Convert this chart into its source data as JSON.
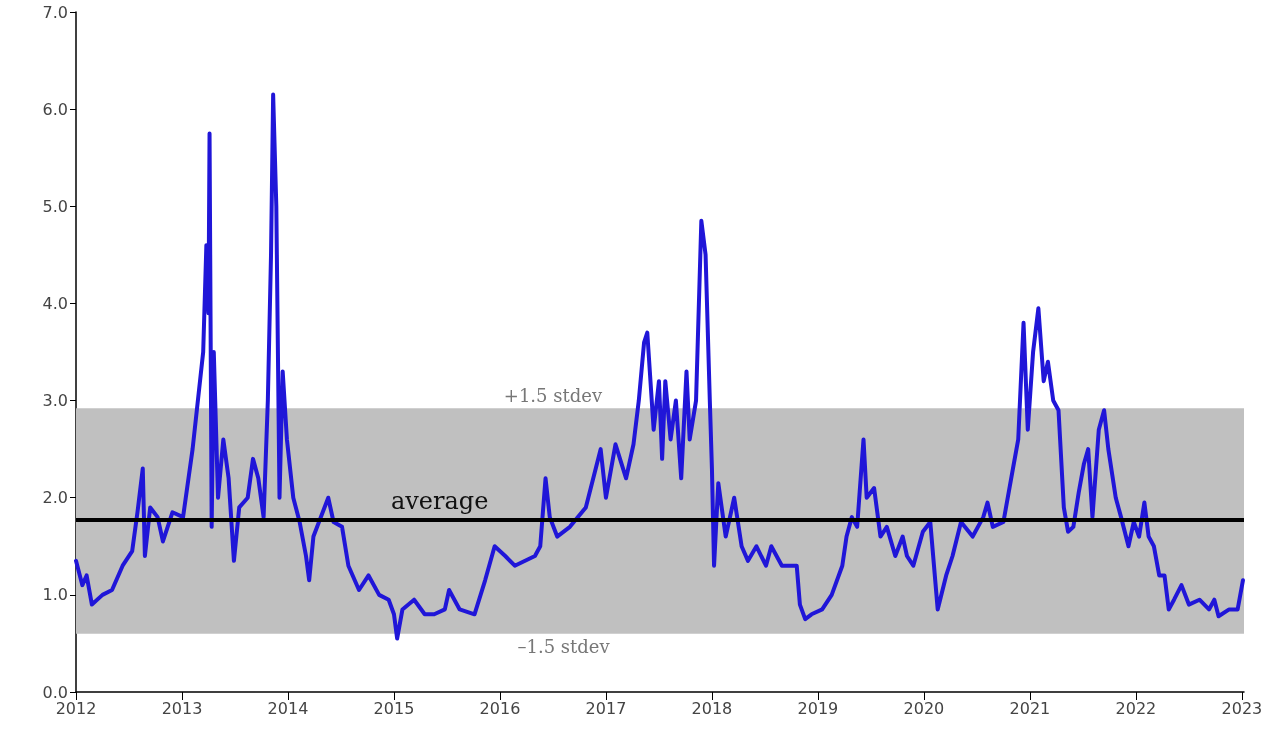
{
  "chart_data": {
    "type": "line",
    "x": [
      2012.0,
      2012.06,
      2012.1,
      2012.15,
      2012.25,
      2012.34,
      2012.44,
      2012.53,
      2012.58,
      2012.63,
      2012.65,
      2012.7,
      2012.77,
      2012.82,
      2012.91,
      2013.01,
      2013.1,
      2013.15,
      2013.2,
      2013.23,
      2013.25,
      2013.26,
      2013.28,
      2013.3,
      2013.34,
      2013.39,
      2013.44,
      2013.49,
      2013.54,
      2013.62,
      2013.67,
      2013.72,
      2013.77,
      2013.81,
      2013.84,
      2013.86,
      2013.89,
      2013.92,
      2013.95,
      2013.99,
      2014.05,
      2014.11,
      2014.17,
      2014.2,
      2014.24,
      2014.38,
      2014.43,
      2014.51,
      2014.57,
      2014.67,
      2014.76,
      2014.86,
      2014.95,
      2015.0,
      2015.03,
      2015.08,
      2015.19,
      2015.29,
      2015.38,
      2015.48,
      2015.52,
      2015.62,
      2015.76,
      2015.86,
      2015.95,
      2016.05,
      2016.14,
      2016.33,
      2016.38,
      2016.43,
      2016.47,
      2016.54,
      2016.66,
      2016.81,
      2016.95,
      2017.0,
      2017.09,
      2017.19,
      2017.26,
      2017.31,
      2017.36,
      2017.39,
      2017.45,
      2017.5,
      2017.53,
      2017.56,
      2017.61,
      2017.66,
      2017.71,
      2017.76,
      2017.79,
      2017.85,
      2017.9,
      2017.94,
      2017.98,
      2018.0,
      2018.02,
      2018.06,
      2018.13,
      2018.21,
      2018.28,
      2018.34,
      2018.42,
      2018.51,
      2018.56,
      2018.66,
      2018.8,
      2018.83,
      2018.88,
      2018.94,
      2019.04,
      2019.13,
      2019.23,
      2019.27,
      2019.32,
      2019.37,
      2019.43,
      2019.46,
      2019.53,
      2019.59,
      2019.65,
      2019.73,
      2019.8,
      2019.84,
      2019.9,
      2019.99,
      2020.06,
      2020.13,
      2020.21,
      2020.27,
      2020.35,
      2020.46,
      2020.56,
      2020.6,
      2020.65,
      2020.75,
      2020.84,
      2020.89,
      2020.94,
      2020.98,
      2021.03,
      2021.08,
      2021.13,
      2021.17,
      2021.22,
      2021.27,
      2021.32,
      2021.36,
      2021.41,
      2021.46,
      2021.51,
      2021.55,
      2021.59,
      2021.65,
      2021.7,
      2021.74,
      2021.81,
      2021.86,
      2021.93,
      2021.98,
      2022.03,
      2022.08,
      2022.12,
      2022.17,
      2022.22,
      2022.27,
      2022.31,
      2022.36,
      2022.43,
      2022.5,
      2022.6,
      2022.69,
      2022.74,
      2022.78,
      2022.88,
      2022.96,
      2023.01
    ],
    "series": [
      {
        "color": "#2016d8",
        "values": [
          1.35,
          1.1,
          1.2,
          0.9,
          1.0,
          1.05,
          1.3,
          1.45,
          1.85,
          2.3,
          1.4,
          1.9,
          1.8,
          1.55,
          1.85,
          1.8,
          2.5,
          3.0,
          3.5,
          4.6,
          3.9,
          5.75,
          1.7,
          3.5,
          2.0,
          2.6,
          2.2,
          1.35,
          1.9,
          2.0,
          2.4,
          2.2,
          1.8,
          3.0,
          4.5,
          6.15,
          5.0,
          2.0,
          3.3,
          2.6,
          2.0,
          1.75,
          1.4,
          1.15,
          1.6,
          2.0,
          1.75,
          1.7,
          1.3,
          1.05,
          1.2,
          1.0,
          0.95,
          0.8,
          0.55,
          0.85,
          0.95,
          0.8,
          0.8,
          0.85,
          1.05,
          0.85,
          0.8,
          1.15,
          1.5,
          1.4,
          1.3,
          1.4,
          1.5,
          2.2,
          1.8,
          1.6,
          1.7,
          1.9,
          2.5,
          2.0,
          2.55,
          2.2,
          2.55,
          3.0,
          3.6,
          3.7,
          2.7,
          3.2,
          2.4,
          3.2,
          2.6,
          3.0,
          2.2,
          3.3,
          2.6,
          3.0,
          4.85,
          4.5,
          3.0,
          2.3,
          1.3,
          2.15,
          1.6,
          2.0,
          1.5,
          1.35,
          1.5,
          1.3,
          1.5,
          1.3,
          1.3,
          0.9,
          0.75,
          0.8,
          0.85,
          1.0,
          1.3,
          1.6,
          1.8,
          1.7,
          2.6,
          2.0,
          2.1,
          1.6,
          1.7,
          1.4,
          1.6,
          1.4,
          1.3,
          1.65,
          1.75,
          0.85,
          1.2,
          1.4,
          1.75,
          1.6,
          1.8,
          1.95,
          1.7,
          1.75,
          2.3,
          2.6,
          3.8,
          2.7,
          3.5,
          3.95,
          3.2,
          3.4,
          3.0,
          2.9,
          1.9,
          1.65,
          1.7,
          2.05,
          2.35,
          2.5,
          1.8,
          2.7,
          2.9,
          2.5,
          2.0,
          1.8,
          1.5,
          1.75,
          1.6,
          1.95,
          1.6,
          1.5,
          1.2,
          1.2,
          0.85,
          0.95,
          1.1,
          0.9,
          0.95,
          0.85,
          0.95,
          0.78,
          0.85,
          0.85,
          1.15
        ]
      }
    ],
    "xlim": [
      2012,
      2023.02
    ],
    "xticks": [
      2012,
      2013,
      2014,
      2015,
      2016,
      2017,
      2018,
      2019,
      2020,
      2021,
      2022,
      2023
    ],
    "ylim": [
      0,
      7
    ],
    "yticks": [
      {
        "value": 0,
        "label": "0.0"
      },
      {
        "value": 1,
        "label": "1.0"
      },
      {
        "value": 2,
        "label": "2.0"
      },
      {
        "value": 3,
        "label": "3.0"
      },
      {
        "value": 4,
        "label": "4.0"
      },
      {
        "value": 5,
        "label": "5.0"
      },
      {
        "value": 6,
        "label": "6.0"
      },
      {
        "value": 7,
        "label": "7.0"
      }
    ],
    "ref_lines": [
      {
        "axis": "y",
        "value": 1.77,
        "label": "average",
        "color": "#000000"
      }
    ],
    "bands": [
      {
        "axis": "y",
        "from": 0.6,
        "to": 2.92,
        "color": "#c0c0c0"
      }
    ],
    "annotations": [
      {
        "text": "+1.5 stdev",
        "x": 2016.5,
        "y": 2.92
      },
      {
        "text": "–1.5 stdev",
        "x": 2016.6,
        "y": 0.6
      }
    ],
    "grid": false,
    "marker": "none",
    "line_style": "solid"
  }
}
